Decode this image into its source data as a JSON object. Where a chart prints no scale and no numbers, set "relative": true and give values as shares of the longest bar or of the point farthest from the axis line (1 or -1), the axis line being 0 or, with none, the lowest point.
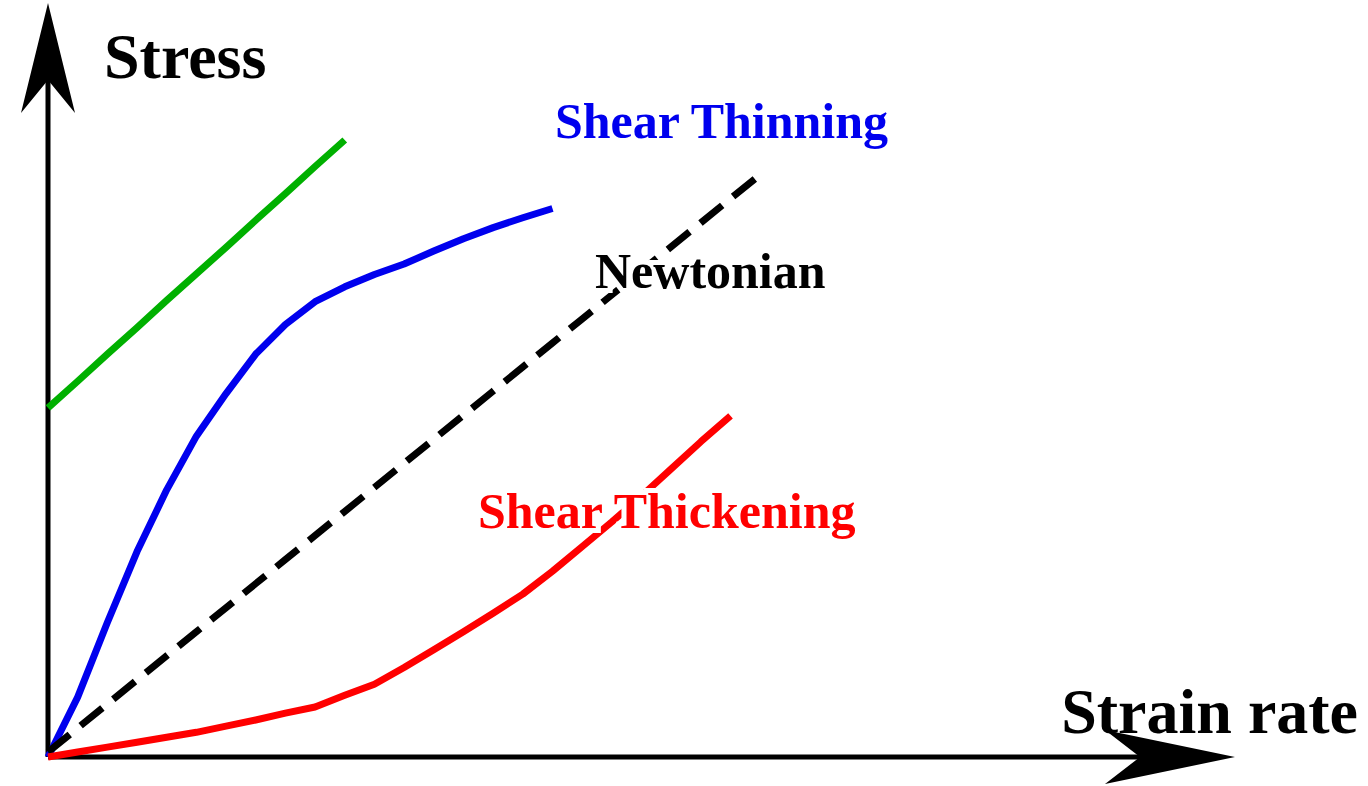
{
  "chart_data": {
    "type": "line",
    "relative": true,
    "xlabel": "Strain rate",
    "ylabel": "Stress",
    "legend": false,
    "marker": "none",
    "categories": [
      null,
      null,
      null,
      null,
      null,
      null,
      null,
      null,
      null,
      null,
      null,
      null,
      null,
      null,
      null,
      null,
      null,
      null,
      null,
      null,
      null,
      null,
      null,
      null,
      null,
      null,
      null,
      null,
      null,
      null,
      null,
      null,
      null,
      null,
      null,
      null,
      null,
      null,
      null,
      null
    ],
    "series": [
      {
        "color": "#00b000",
        "values": [
          0.566,
          0.609,
          0.653,
          0.696,
          0.74,
          0.783,
          0.826,
          0.87,
          0.913,
          0.957,
          1,
          null,
          null,
          null,
          null,
          null,
          null,
          null,
          null,
          null,
          null,
          null,
          null,
          null,
          null,
          null,
          null,
          null,
          null,
          null,
          null,
          null,
          null,
          null,
          null,
          null,
          null,
          null,
          null,
          null
        ]
      },
      {
        "name": "Shear Thinning",
        "color": "#0000ee",
        "values": [
          0,
          0.097,
          0.218,
          0.333,
          0.433,
          0.52,
          0.589,
          0.653,
          0.701,
          0.738,
          0.762,
          0.782,
          0.799,
          0.82,
          0.84,
          0.858,
          0.874,
          0.889,
          null,
          null,
          null,
          null,
          null,
          null,
          null,
          null,
          null,
          null,
          null,
          null,
          null,
          null,
          null,
          null,
          null,
          null,
          null,
          null,
          null,
          null
        ]
      },
      {
        "name": "Newtonian",
        "color": "#000000",
        "line_style": "dashed",
        "values": [
          0.008,
          0.047,
          0.086,
          0.125,
          0.164,
          0.203,
          0.242,
          0.281,
          0.32,
          0.359,
          0.398,
          0.437,
          0.476,
          0.515,
          0.554,
          0.593,
          0.632,
          0.671,
          0.71,
          0.749,
          0.788,
          0.827,
          0.866,
          0.905,
          0.944,
          null,
          null,
          null,
          null,
          null,
          null,
          null,
          null,
          null,
          null,
          null,
          null,
          null,
          null,
          null
        ]
      },
      {
        "name": "Shear Thickening",
        "color": "#ff0000",
        "values": [
          0,
          0.008,
          0.016,
          0.024,
          0.032,
          0.04,
          0.05,
          0.06,
          0.071,
          0.081,
          0.1,
          0.118,
          0.145,
          0.174,
          0.203,
          0.233,
          0.264,
          0.301,
          0.341,
          0.381,
          0.423,
          0.467,
          0.511,
          0.553,
          null,
          null,
          null,
          null,
          null,
          null,
          null,
          null,
          null,
          null,
          null,
          null,
          null,
          null,
          null,
          null
        ]
      }
    ]
  }
}
